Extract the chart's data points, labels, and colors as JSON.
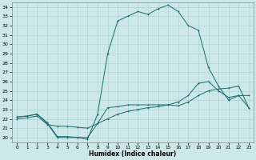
{
  "xlabel": "Humidex (Indice chaleur)",
  "bg_color": "#cce8e8",
  "grid_color": "#aacccc",
  "line_color": "#1a6b6b",
  "xlim": [
    -0.5,
    23.5
  ],
  "ylim": [
    19.5,
    34.5
  ],
  "xticks": [
    0,
    1,
    2,
    3,
    4,
    5,
    6,
    7,
    8,
    9,
    10,
    11,
    12,
    13,
    14,
    15,
    16,
    17,
    18,
    19,
    20,
    21,
    22,
    23
  ],
  "yticks": [
    20,
    21,
    22,
    23,
    24,
    25,
    26,
    27,
    28,
    29,
    30,
    31,
    32,
    33,
    34
  ],
  "line1_x": [
    0,
    1,
    2,
    3,
    4,
    5,
    6,
    7,
    8,
    9,
    10,
    11,
    12,
    13,
    14,
    15,
    16,
    17,
    18,
    19,
    20,
    21,
    22,
    23
  ],
  "line1_y": [
    22.2,
    22.3,
    22.5,
    21.6,
    20.1,
    20.1,
    20.0,
    20.0,
    21.5,
    23.2,
    23.3,
    23.5,
    23.5,
    23.5,
    23.5,
    23.5,
    23.8,
    24.5,
    25.8,
    26.0,
    25.0,
    24.3,
    24.5,
    23.2
  ],
  "line2_x": [
    0,
    1,
    2,
    3,
    4,
    5,
    6,
    7,
    8,
    9,
    10,
    11,
    12,
    13,
    14,
    15,
    16,
    17,
    18,
    19,
    20,
    21,
    22,
    23
  ],
  "line2_y": [
    22.0,
    22.1,
    22.3,
    21.4,
    21.2,
    21.2,
    21.1,
    21.0,
    21.5,
    22.0,
    22.5,
    22.8,
    23.0,
    23.2,
    23.3,
    23.5,
    23.4,
    23.8,
    24.5,
    25.0,
    25.2,
    25.3,
    25.5,
    23.2
  ],
  "line3_x": [
    0,
    1,
    2,
    3,
    4,
    5,
    6,
    7,
    8,
    9,
    10,
    11,
    12,
    13,
    14,
    15,
    16,
    17,
    18,
    19,
    20,
    21,
    22,
    23
  ],
  "line3_y": [
    22.2,
    22.3,
    22.5,
    21.5,
    20.0,
    20.0,
    20.0,
    19.8,
    22.5,
    29.0,
    32.5,
    33.0,
    33.5,
    33.2,
    33.8,
    34.2,
    33.5,
    32.0,
    31.5,
    27.5,
    25.5,
    24.0,
    24.5,
    24.5
  ]
}
